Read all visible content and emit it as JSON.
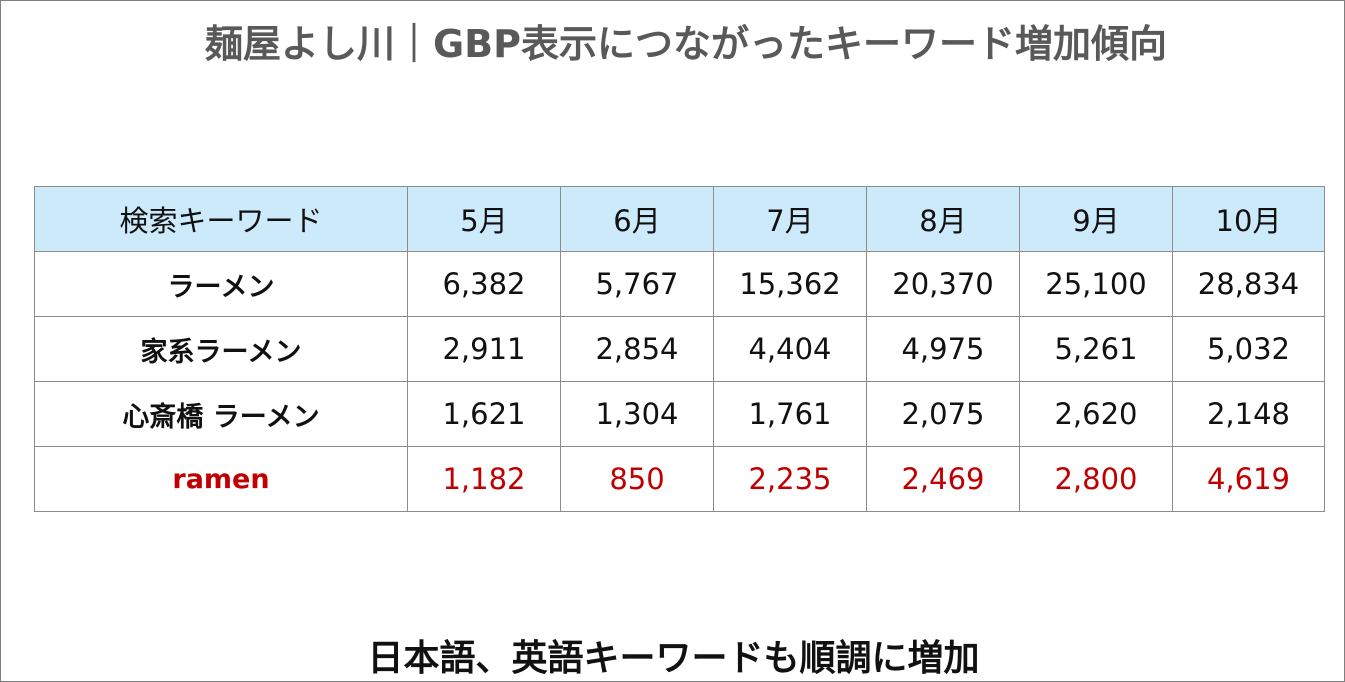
{
  "header": {
    "title": "麺屋よし川｜GBP表示につながったキーワード増加傾向"
  },
  "table": {
    "columns": [
      "検索キーワード",
      "5月",
      "6月",
      "7月",
      "8月",
      "9月",
      "10月"
    ],
    "rows": [
      [
        "ラーメン",
        "6,382",
        "5,767",
        "15,362",
        "20,370",
        "25,100",
        "28,834"
      ],
      [
        "家系ラーメン",
        "2,911",
        "2,854",
        "4,404",
        "4,975",
        "5,261",
        "5,032"
      ],
      [
        "心斎橋 ラーメン",
        "1,621",
        "1,304",
        "1,761",
        "2,075",
        "2,620",
        "2,148"
      ],
      [
        "ramen",
        "1,182",
        "850",
        "2,235",
        "2,469",
        "2,800",
        "4,619"
      ]
    ]
  },
  "footer": {
    "text": "日本語、英語キーワードも順調に増加"
  }
}
